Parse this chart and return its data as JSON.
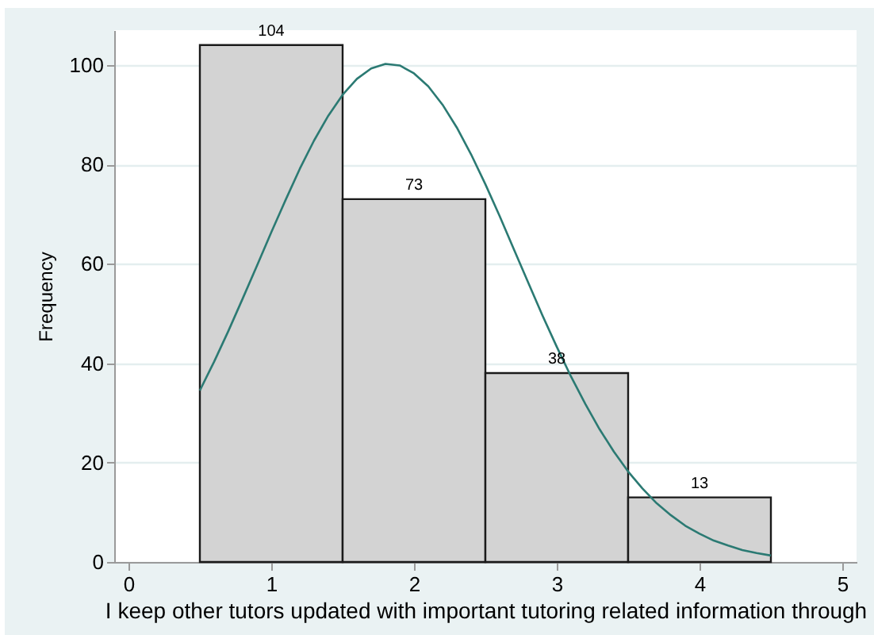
{
  "chart_data": {
    "type": "histogram",
    "xlabel": "I keep other tutors updated with important tutoring related information through",
    "ylabel": "Frequency",
    "bins": [
      0.5,
      1.5,
      2.5,
      3.5,
      4.5
    ],
    "series": [
      {
        "values": [
          104,
          73,
          38,
          13
        ],
        "value_labels": [
          "104",
          "73",
          "38",
          "13"
        ],
        "color": "#d3d3d3"
      },
      {
        "type": "line",
        "color": "#2b7a73",
        "x": [
          0.5,
          0.6,
          0.7,
          0.8,
          0.9,
          1.0,
          1.1,
          1.2,
          1.3,
          1.4,
          1.5,
          1.6,
          1.7,
          1.8,
          1.9,
          2.0,
          2.1,
          2.2,
          2.3,
          2.4,
          2.5,
          2.6,
          2.7,
          2.8,
          2.9,
          3.0,
          3.1,
          3.2,
          3.3,
          3.4,
          3.5,
          3.6,
          3.7,
          3.8,
          3.9,
          4.0,
          4.1,
          4.2,
          4.3,
          4.4,
          4.5
        ],
        "values": [
          34.5,
          40.3,
          46.5,
          53.0,
          59.6,
          66.3,
          72.8,
          79.1,
          84.8,
          89.8,
          94.0,
          97.2,
          99.3,
          100.2,
          99.9,
          98.3,
          95.7,
          92.0,
          87.4,
          82.0,
          76.0,
          69.6,
          62.9,
          56.2,
          49.6,
          43.3,
          37.3,
          31.8,
          26.7,
          22.2,
          18.2,
          14.8,
          11.8,
          9.4,
          7.3,
          5.7,
          4.3,
          3.3,
          2.4,
          1.8,
          1.3
        ]
      }
    ],
    "xlim": [
      -0.1,
      5.1
    ],
    "xticks": [
      0,
      1,
      2,
      3,
      4,
      5
    ],
    "ylim": [
      0,
      107
    ],
    "yticks": [
      0,
      20,
      40,
      60,
      80,
      100
    ],
    "grid": "y"
  }
}
